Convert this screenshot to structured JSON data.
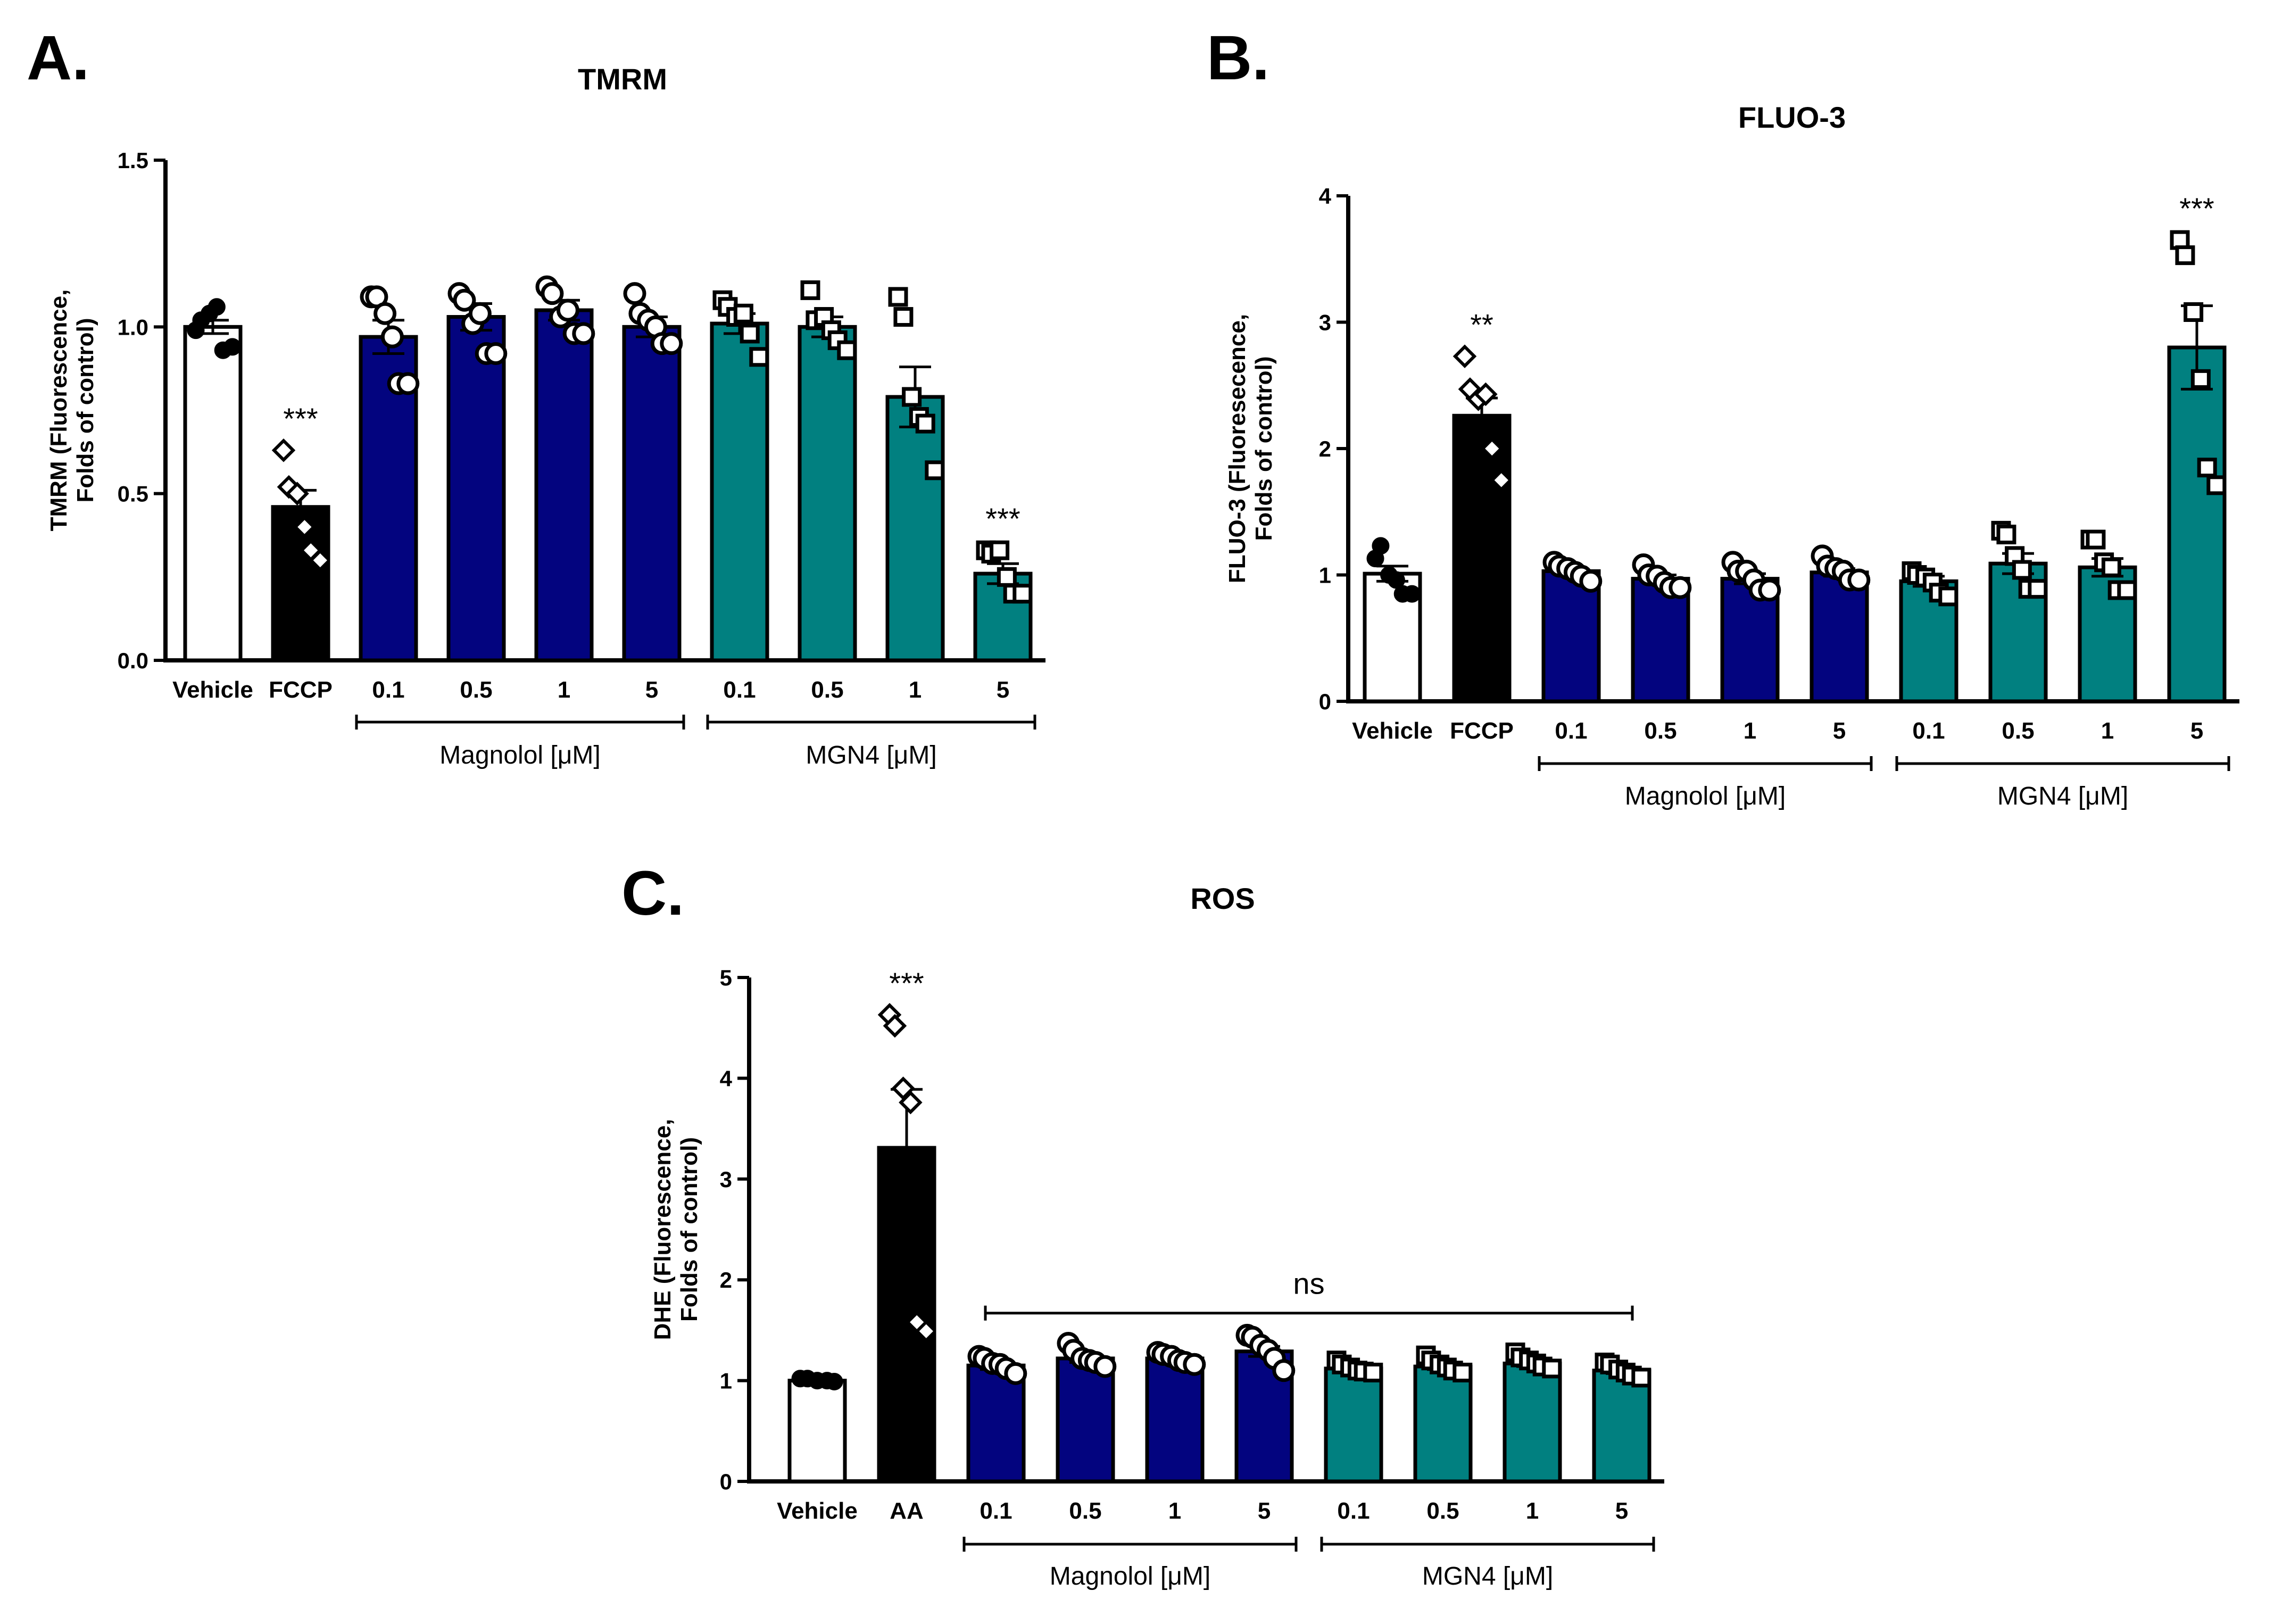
{
  "colors": {
    "vehicle_fill": "#ffffff",
    "control_fill": "#000000",
    "magnolol_fill": "#03047f",
    "mgn4_fill": "#018080",
    "stroke": "#000000"
  },
  "panels": [
    {
      "label": "A."
    },
    {
      "label": "B."
    },
    {
      "label": "C."
    }
  ],
  "chart_data": [
    {
      "type": "bar",
      "title": "TMRM",
      "ylabel": "TMRM (Fluorescence,\nFolds of control)",
      "xlabel": "",
      "ylim": [
        0,
        1.5
      ],
      "yticks": [
        0,
        0.5,
        1,
        1.5
      ],
      "ytick_labels": [
        "0.0",
        "0.5",
        "1.0",
        "1.5"
      ],
      "categories": [
        "Vehicle",
        "FCCP",
        "0.1",
        "0.5",
        "1",
        "5",
        "0.1",
        "0.5",
        "1",
        "5"
      ],
      "groups": [
        {
          "label": "Magnolol [μM]",
          "from": 2,
          "to": 5
        },
        {
          "label": "MGN4 [μM]",
          "from": 6,
          "to": 9
        }
      ],
      "series": [
        {
          "name": "Vehicle",
          "index": 0,
          "mean": 1.0,
          "sem": 0.02,
          "marker": "filled-circle",
          "points": [
            0.99,
            1.02,
            1.04,
            1.06,
            0.93,
            0.94
          ]
        },
        {
          "name": "FCCP",
          "index": 1,
          "mean": 0.46,
          "sem": 0.05,
          "marker": "diamond",
          "significance": "***",
          "points": [
            0.63,
            0.52,
            0.5,
            0.4,
            0.33,
            0.3
          ]
        },
        {
          "name": "Magnolol 0.1",
          "index": 2,
          "mean": 0.97,
          "sem": 0.05,
          "marker": "open-circle",
          "points": [
            1.09,
            1.09,
            1.04,
            0.97,
            0.83,
            0.83
          ]
        },
        {
          "name": "Magnolol 0.5",
          "index": 3,
          "mean": 1.03,
          "sem": 0.04,
          "marker": "open-circle",
          "points": [
            1.1,
            1.08,
            1.01,
            1.04,
            0.92,
            0.92
          ]
        },
        {
          "name": "Magnolol 1",
          "index": 4,
          "mean": 1.05,
          "sem": 0.03,
          "marker": "open-circle",
          "points": [
            1.12,
            1.1,
            1.03,
            1.05,
            0.98,
            0.98
          ]
        },
        {
          "name": "Magnolol 5",
          "index": 5,
          "mean": 1.0,
          "sem": 0.03,
          "marker": "open-circle",
          "points": [
            1.1,
            1.04,
            1.02,
            1.0,
            0.95,
            0.95
          ]
        },
        {
          "name": "MGN4 0.1",
          "index": 6,
          "mean": 1.01,
          "sem": 0.03,
          "marker": "open-square",
          "points": [
            1.08,
            1.06,
            1.03,
            1.04,
            0.98,
            0.91
          ]
        },
        {
          "name": "MGN4 0.5",
          "index": 7,
          "mean": 1.0,
          "sem": 0.03,
          "marker": "open-square",
          "points": [
            1.11,
            1.02,
            1.03,
            0.99,
            0.96,
            0.93
          ]
        },
        {
          "name": "MGN4 1",
          "index": 8,
          "mean": 0.79,
          "sem": 0.09,
          "marker": "open-square",
          "points": [
            1.09,
            1.03,
            0.79,
            0.73,
            0.71,
            0.57
          ]
        },
        {
          "name": "MGN4 5",
          "index": 9,
          "mean": 0.26,
          "sem": 0.03,
          "marker": "open-square",
          "significance": "***",
          "points": [
            0.33,
            0.32,
            0.33,
            0.25,
            0.2,
            0.2
          ]
        }
      ]
    },
    {
      "type": "bar",
      "title": "FLUO-3",
      "ylabel": "FLUO-3 (Fluoresecence,\nFolds of control)",
      "xlabel": "",
      "ylim": [
        0,
        4
      ],
      "yticks": [
        0,
        1,
        2,
        3,
        4
      ],
      "ytick_labels": [
        "0",
        "1",
        "2",
        "3",
        "4"
      ],
      "categories": [
        "Vehicle",
        "FCCP",
        "0.1",
        "0.5",
        "1",
        "5",
        "0.1",
        "0.5",
        "1",
        "5"
      ],
      "groups": [
        {
          "label": "Magnolol [μM]",
          "from": 2,
          "to": 5
        },
        {
          "label": "MGN4 [μM]",
          "from": 6,
          "to": 9
        }
      ],
      "series": [
        {
          "name": "Vehicle",
          "index": 0,
          "mean": 1.01,
          "sem": 0.06,
          "marker": "filled-circle",
          "points": [
            1.13,
            1.23,
            1.0,
            0.96,
            0.85,
            0.85
          ]
        },
        {
          "name": "FCCP",
          "index": 1,
          "mean": 2.26,
          "sem": 0.14,
          "marker": "diamond",
          "significance": "**",
          "points": [
            2.73,
            2.47,
            2.39,
            2.43,
            2.0,
            1.75
          ]
        },
        {
          "name": "Magnolol 0.1",
          "index": 2,
          "mean": 1.03,
          "sem": 0.03,
          "marker": "open-circle",
          "points": [
            1.1,
            1.07,
            1.05,
            1.02,
            0.99,
            0.95
          ]
        },
        {
          "name": "Magnolol 0.5",
          "index": 3,
          "mean": 0.97,
          "sem": 0.03,
          "marker": "open-circle",
          "points": [
            1.08,
            1.0,
            0.99,
            0.94,
            0.9,
            0.9
          ]
        },
        {
          "name": "Magnolol 1",
          "index": 4,
          "mean": 0.97,
          "sem": 0.04,
          "marker": "open-circle",
          "points": [
            1.1,
            1.03,
            1.03,
            0.96,
            0.88,
            0.88
          ]
        },
        {
          "name": "Magnolol 5",
          "index": 5,
          "mean": 1.02,
          "sem": 0.03,
          "marker": "open-circle",
          "points": [
            1.15,
            1.07,
            1.05,
            1.03,
            0.96,
            0.96
          ]
        },
        {
          "name": "MGN4 0.1",
          "index": 6,
          "mean": 0.95,
          "sem": 0.04,
          "marker": "open-square",
          "points": [
            1.03,
            1.0,
            0.98,
            0.94,
            0.86,
            0.83
          ]
        },
        {
          "name": "MGN4 0.5",
          "index": 7,
          "mean": 1.09,
          "sem": 0.08,
          "marker": "open-square",
          "points": [
            1.35,
            1.32,
            1.15,
            1.04,
            0.89,
            0.89
          ]
        },
        {
          "name": "MGN4 1",
          "index": 8,
          "mean": 1.06,
          "sem": 0.07,
          "marker": "open-square",
          "points": [
            1.28,
            1.28,
            1.1,
            1.06,
            0.88,
            0.88
          ]
        },
        {
          "name": "MGN4 5",
          "index": 9,
          "mean": 2.8,
          "sem": 0.33,
          "marker": "open-square",
          "significance": "***",
          "points": [
            3.65,
            3.53,
            3.08,
            2.55,
            1.85,
            1.71
          ]
        }
      ]
    },
    {
      "type": "bar",
      "title": "ROS",
      "ylabel": "DHE (Fluorescence,\nFolds of control)",
      "xlabel": "",
      "ylim": [
        0,
        5
      ],
      "yticks": [
        0,
        1,
        2,
        3,
        4,
        5
      ],
      "ytick_labels": [
        "0",
        "1",
        "2",
        "3",
        "4",
        "5"
      ],
      "categories": [
        "Vehicle",
        "AA",
        "0.1",
        "0.5",
        "1",
        "5",
        "0.1",
        "0.5",
        "1",
        "5"
      ],
      "groups": [
        {
          "label": "Magnolol [μM]",
          "from": 2,
          "to": 5
        },
        {
          "label": "MGN4 [μM]",
          "from": 6,
          "to": 9
        }
      ],
      "bracket": {
        "label": "ns",
        "from": 2,
        "to": 9,
        "value": 1.67
      },
      "series": [
        {
          "name": "Vehicle",
          "index": 0,
          "mean": 1.0,
          "sem": 0.01,
          "marker": "filled-circle",
          "points": [
            1.02,
            1.02,
            1.0,
            1.0,
            0.99
          ]
        },
        {
          "name": "AA",
          "index": 1,
          "mean": 3.31,
          "sem": 0.58,
          "marker": "diamond",
          "significance": "***",
          "points": [
            4.63,
            4.52,
            3.9,
            3.76,
            1.58,
            1.49
          ]
        },
        {
          "name": "Magnolol 0.1",
          "index": 2,
          "mean": 1.15,
          "sem": 0.04,
          "marker": "open-circle",
          "points": [
            1.24,
            1.22,
            1.17,
            1.16,
            1.12,
            1.07
          ]
        },
        {
          "name": "Magnolol 0.5",
          "index": 3,
          "mean": 1.22,
          "sem": 0.04,
          "marker": "open-circle",
          "points": [
            1.37,
            1.3,
            1.22,
            1.2,
            1.18,
            1.14
          ]
        },
        {
          "name": "Magnolol 1",
          "index": 4,
          "mean": 1.22,
          "sem": 0.03,
          "marker": "open-circle",
          "points": [
            1.28,
            1.26,
            1.24,
            1.2,
            1.18,
            1.16
          ]
        },
        {
          "name": "Magnolol 5",
          "index": 5,
          "mean": 1.29,
          "sem": 0.05,
          "marker": "open-circle",
          "points": [
            1.45,
            1.43,
            1.35,
            1.3,
            1.22,
            1.1
          ]
        },
        {
          "name": "MGN4 0.1",
          "index": 6,
          "mean": 1.12,
          "sem": 0.02,
          "marker": "open-square",
          "points": [
            1.2,
            1.16,
            1.13,
            1.1,
            1.09,
            1.08
          ]
        },
        {
          "name": "MGN4 0.5",
          "index": 7,
          "mean": 1.14,
          "sem": 0.03,
          "marker": "open-square",
          "points": [
            1.25,
            1.2,
            1.16,
            1.13,
            1.1,
            1.08
          ]
        },
        {
          "name": "MGN4 1",
          "index": 8,
          "mean": 1.17,
          "sem": 0.03,
          "marker": "open-square",
          "points": [
            1.28,
            1.23,
            1.2,
            1.17,
            1.14,
            1.12
          ]
        },
        {
          "name": "MGN4 5",
          "index": 9,
          "mean": 1.1,
          "sem": 0.03,
          "marker": "open-square",
          "points": [
            1.18,
            1.16,
            1.11,
            1.08,
            1.05,
            1.03
          ]
        }
      ]
    }
  ]
}
